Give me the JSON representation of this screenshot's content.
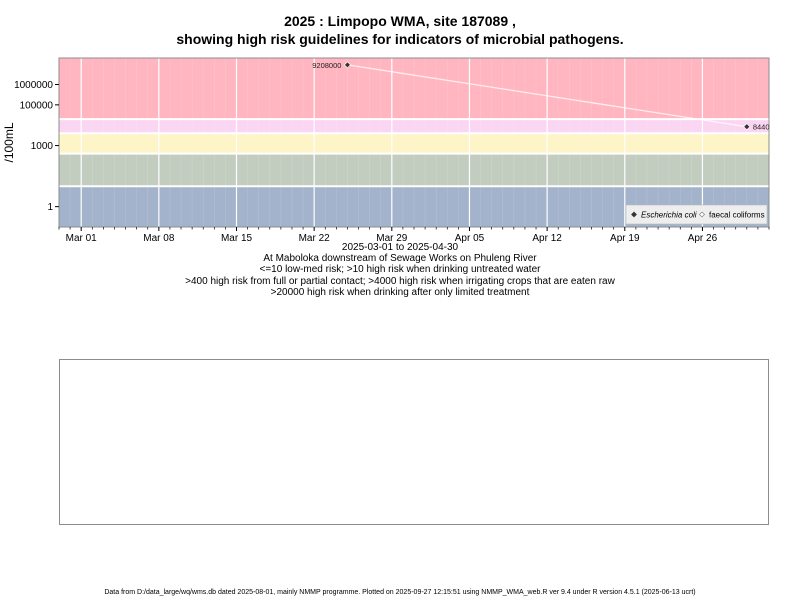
{
  "title": {
    "line1": "2025 : Limpopo WMA, site 187089 ,",
    "line2": "showing high risk guidelines for indicators of microbial pathogens."
  },
  "chart_data": {
    "type": "scatter",
    "y_scale": "log",
    "ylabel": "/100mL",
    "ylim": [
      0.1,
      20000000
    ],
    "xlim": [
      "2025-02-27",
      "2025-05-02"
    ],
    "x_ticks": [
      {
        "date": "2025-03-01",
        "label": "Mar 01"
      },
      {
        "date": "2025-03-08",
        "label": "Mar 08"
      },
      {
        "date": "2025-03-15",
        "label": "Mar 15"
      },
      {
        "date": "2025-03-22",
        "label": "Mar 22"
      },
      {
        "date": "2025-03-29",
        "label": "Mar 29"
      },
      {
        "date": "2025-04-05",
        "label": "Apr 05"
      },
      {
        "date": "2025-04-12",
        "label": "Apr 12"
      },
      {
        "date": "2025-04-19",
        "label": "Apr 19"
      },
      {
        "date": "2025-04-26",
        "label": "Apr 26"
      }
    ],
    "y_ticks": [
      {
        "value": 1,
        "label": "1"
      },
      {
        "value": 1000,
        "label": "1000"
      },
      {
        "value": 100000,
        "label": "100000"
      },
      {
        "value": 1000000,
        "label": "1000000"
      }
    ],
    "risk_bands": [
      {
        "from": 0.1,
        "to": 10,
        "color": "#a3b3cb"
      },
      {
        "from": 10,
        "to": 400,
        "color": "#c2cdc0"
      },
      {
        "from": 400,
        "to": 4000,
        "color": "#fdf4c7"
      },
      {
        "from": 4000,
        "to": 20000,
        "color": "#fbd6f2"
      },
      {
        "from": 20000,
        "to": 20000000,
        "color": "#ffb6c1"
      }
    ],
    "series": [
      {
        "name": "Escherichia coli",
        "color": "#333333",
        "points": [
          {
            "x": "2025-03-25",
            "y": 9208000,
            "label": "9208000"
          },
          {
            "x": "2025-04-30",
            "y": 8440,
            "label": "8440"
          }
        ]
      },
      {
        "name": "faecal coliforms",
        "color": "#ffffff",
        "points": []
      }
    ],
    "legend_position": "bottom-right",
    "grid": true
  },
  "subtitle": [
    "2025-03-01 to 2025-04-30",
    "At Maboloka downstream of Sewage Works on Phuleng River",
    "<=10 low-med risk; >10 high risk when drinking untreated water",
    ">400 high risk from full or partial contact; >4000 high risk when irrigating crops that are eaten raw",
    ">20000 high risk when drinking after only limited treatment"
  ],
  "footer": "Data from D:/data_large/wq/wms.db dated 2025-08-01, mainly NMMP programme. Plotted on 2025-09-27 12:15:51 using NMMP_WMA_web.R ver 9.4 under R version 4.5.1 (2025-06-13 ucrt)"
}
